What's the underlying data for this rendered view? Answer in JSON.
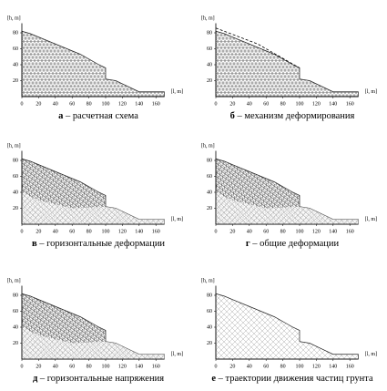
{
  "axes": {
    "y_label": "[h, m]",
    "x_label": "[l, m]",
    "x_ticks": [
      0,
      20,
      40,
      60,
      80,
      100,
      120,
      140,
      160
    ],
    "y_ticks": [
      20,
      40,
      60,
      80
    ]
  },
  "panels": [
    {
      "letter": "а",
      "caption": "– расчетная схема"
    },
    {
      "letter": "б",
      "caption": "– механизм деформирования"
    },
    {
      "letter": "в",
      "caption": "– горизонтальные деформации"
    },
    {
      "letter": "г",
      "caption": "– общие деформации"
    },
    {
      "letter": "д",
      "caption": "– горизонтальные напряжения"
    },
    {
      "letter": "е",
      "caption": "– траектории движения частиц грунта"
    }
  ]
}
